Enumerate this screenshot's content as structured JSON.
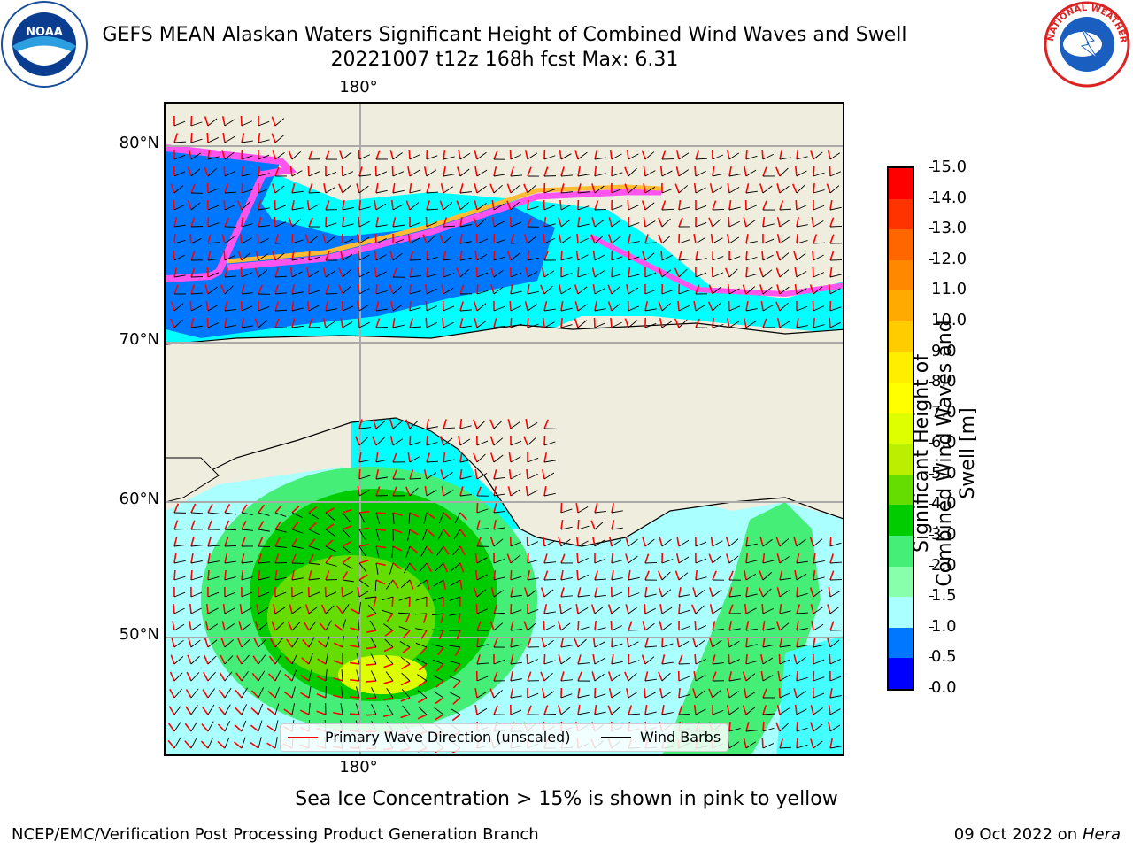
{
  "header": {
    "title_line1": "GEFS MEAN Alaskan Waters Significant Height of Combined Wind Waves and Swell",
    "title_line2": "20221007 t12z 168h fcst   Max: 6.31"
  },
  "map": {
    "lat_labels": [
      "80°N",
      "70°N",
      "60°N",
      "50°N"
    ],
    "lon_label_top": "180°",
    "lon_label_bottom": "180°",
    "land_color": "#efeddd",
    "legend": {
      "wave_label": "Primary Wave Direction (unscaled)",
      "barb_label": "Wind Barbs",
      "wave_color": "#ff0000",
      "barb_color": "#000000"
    }
  },
  "colorbar": {
    "label": "Significant Height of Combined Wind Waves and Swell [m]",
    "ticks": [
      "15.0",
      "14.0",
      "13.0",
      "12.0",
      "11.0",
      "10.0",
      "9.0",
      "8.0",
      "7.0",
      "6.0",
      "5.0",
      "4.0",
      "3.0",
      "2.0",
      "1.5",
      "1.0",
      "0.5",
      "0.0"
    ],
    "colors": [
      "#ff0000",
      "#ff3300",
      "#ff6600",
      "#ff8800",
      "#ffaa00",
      "#ffcc00",
      "#ffee00",
      "#ffff00",
      "#ddff00",
      "#bbee00",
      "#66dd00",
      "#00cc00",
      "#44ee77",
      "#88ffaa",
      "#aaffff",
      "#44ffff",
      "#00ffff",
      "#0077ff",
      "#0000ff"
    ]
  },
  "note": "Sea Ice Concentration > 15% is shown in pink to yellow",
  "footer": {
    "left": "NCEP/EMC/Verification Post Processing Product Generation Branch",
    "right_date": "09 Oct 2022 on",
    "right_host": "Hera"
  },
  "logos": {
    "noaa_text": "NOAA",
    "nws_text": "NATIONAL WEATHER SERVICE"
  }
}
